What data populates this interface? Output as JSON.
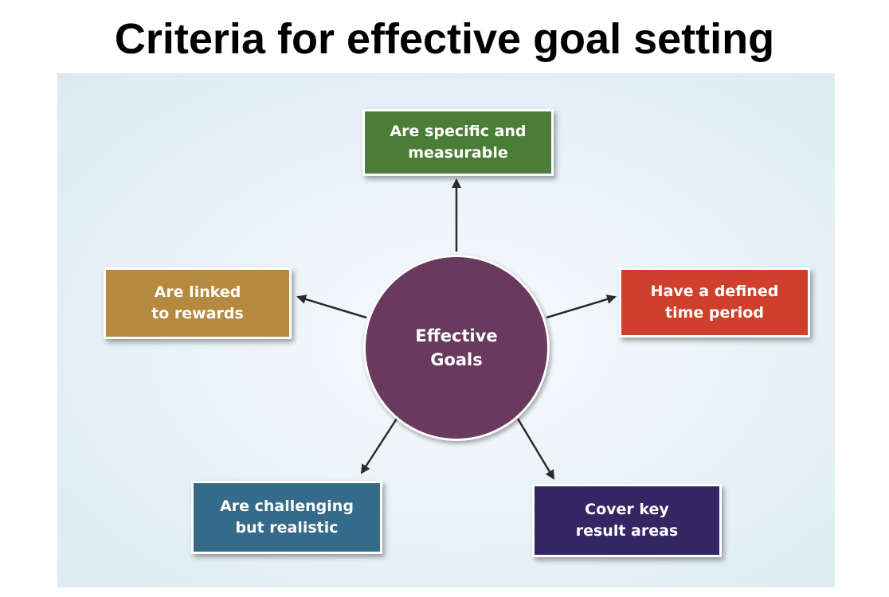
{
  "title": "Criteria for effective goal setting",
  "diagram": {
    "hub": {
      "label_line1": "Effective",
      "label_line2": "Goals",
      "color": "#6a3a5e"
    },
    "nodes": {
      "top": {
        "line1": "Are specific and",
        "line2": "measurable",
        "color": "#4a7e38"
      },
      "left": {
        "line1": "Are linked",
        "line2": "to rewards",
        "color": "#b5893f"
      },
      "right": {
        "line1": "Have a defined",
        "line2": "time period",
        "color": "#cf402c"
      },
      "bottom_left": {
        "line1": "Are challenging",
        "line2": "but realistic",
        "color": "#356a89"
      },
      "bottom_right": {
        "line1": "Cover key",
        "line2": "result areas",
        "color": "#332663"
      }
    }
  }
}
